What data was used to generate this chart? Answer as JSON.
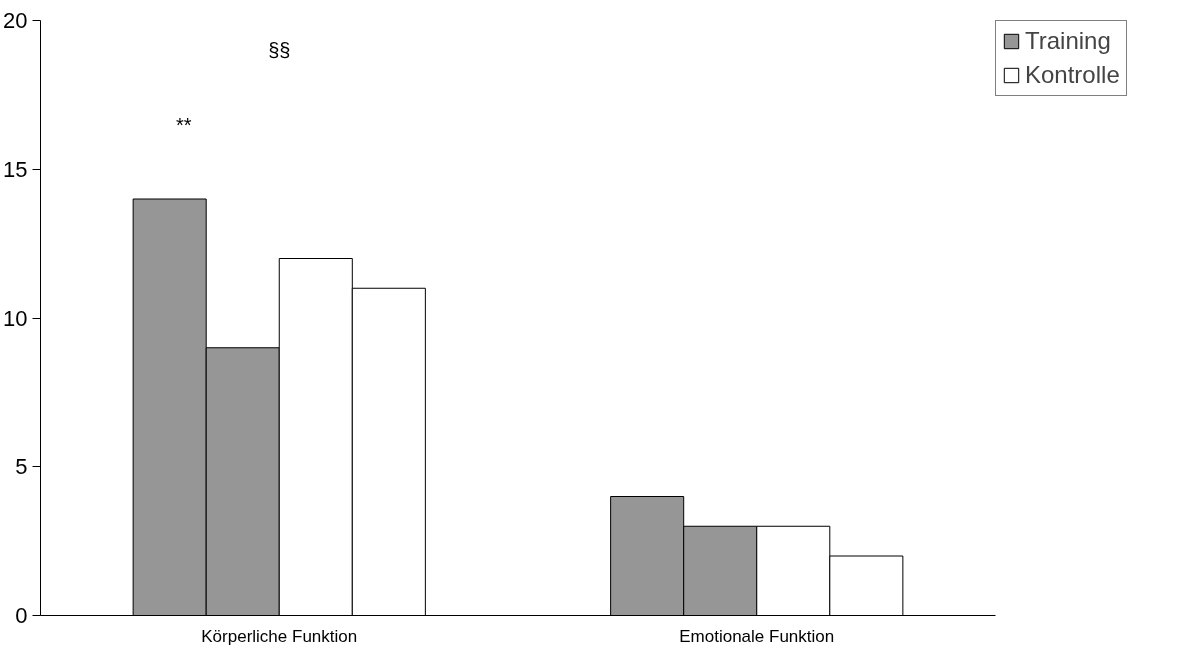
{
  "chart_data": {
    "type": "bar",
    "categories": [
      "Körperliche Funktion",
      "Emotionale Funktion"
    ],
    "series": [
      {
        "name": "Training",
        "color": "#969696",
        "values": [
          14,
          4
        ]
      },
      {
        "color": "#969696",
        "values": [
          9,
          3
        ]
      },
      {
        "name": "Kontrolle",
        "color": "#ffffff",
        "values": [
          12,
          3
        ]
      },
      {
        "color": "#ffffff",
        "values": [
          11,
          2
        ]
      }
    ],
    "ylim": [
      0,
      20
    ],
    "yticks": [
      0,
      5,
      10,
      15,
      20
    ],
    "grid": false,
    "legend": "right",
    "annotations": [
      "§§",
      "**"
    ]
  }
}
